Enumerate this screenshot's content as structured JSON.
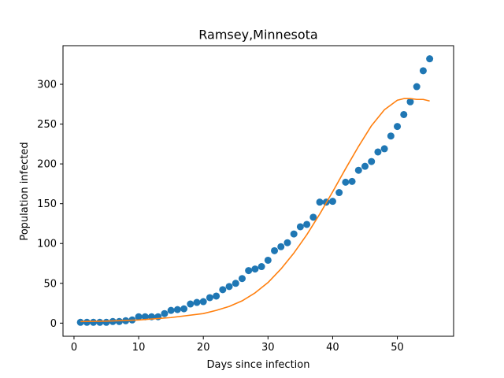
{
  "chart_data": {
    "type": "scatter",
    "title": "Ramsey,Minnesota",
    "xlabel": "Days since infection",
    "ylabel": "Population infected",
    "xlim": [
      -1.7,
      58.7
    ],
    "ylim": [
      -16.5,
      348.5
    ],
    "xticks": [
      0,
      10,
      20,
      30,
      40,
      50
    ],
    "yticks": [
      0,
      50,
      100,
      150,
      200,
      250,
      300
    ],
    "grid": false,
    "series": [
      {
        "kind": "scatter",
        "color": "#1f77b4",
        "x": [
          1,
          2,
          3,
          4,
          5,
          6,
          7,
          8,
          9,
          10,
          11,
          12,
          13,
          14,
          15,
          16,
          17,
          18,
          19,
          20,
          21,
          22,
          23,
          24,
          25,
          26,
          27,
          28,
          29,
          30,
          31,
          32,
          33,
          34,
          35,
          36,
          37,
          38,
          39,
          40,
          41,
          42,
          43,
          44,
          45,
          46,
          47,
          48,
          49,
          50,
          51,
          52,
          53,
          54,
          55
        ],
        "y": [
          1,
          1,
          1,
          1,
          1,
          2,
          2,
          3,
          4,
          8,
          8,
          8,
          8,
          12,
          16,
          17,
          18,
          24,
          26,
          27,
          32,
          34,
          42,
          46,
          50,
          56,
          66,
          68,
          71,
          79,
          91,
          96,
          101,
          112,
          121,
          124,
          133,
          152,
          152,
          153,
          164,
          177,
          178,
          192,
          197,
          203,
          215,
          219,
          235,
          247,
          262,
          278,
          297,
          317,
          332
        ]
      },
      {
        "kind": "line",
        "color": "#ff7f0e",
        "x": [
          1,
          5,
          10,
          15,
          20,
          22,
          24,
          26,
          28,
          30,
          32,
          34,
          36,
          38,
          40,
          42,
          44,
          46,
          48,
          50,
          51,
          52,
          53,
          54,
          55
        ],
        "y": [
          2,
          2.5,
          4,
          7,
          12,
          16,
          21,
          28,
          38,
          51,
          68,
          88,
          111,
          137,
          165,
          194,
          222,
          248,
          268,
          280,
          282,
          282,
          281,
          281,
          279
        ]
      }
    ]
  }
}
